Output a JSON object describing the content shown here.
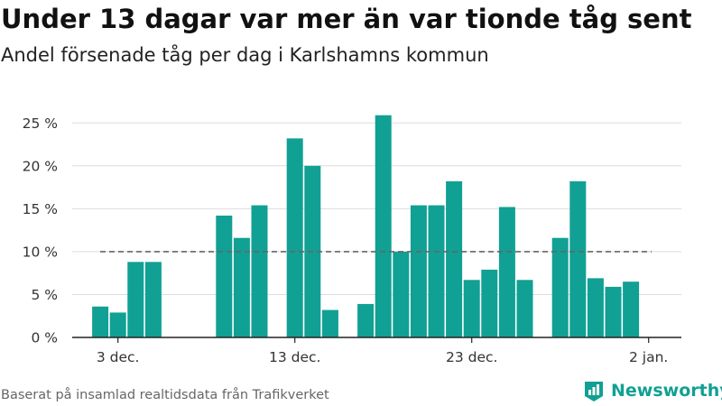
{
  "header": {
    "title": "Under 13 dagar var mer än var tionde tåg sent",
    "subtitle": "Andel försenade tåg per dag i Karlshamns kommun"
  },
  "footer": {
    "source": "Baserat på insamlad realtidsdata från Trafikverket",
    "brand": "Newsworthy"
  },
  "colors": {
    "bar": "#11a094",
    "reference": "#666666",
    "grid": "#dddddd",
    "brand": "#11a094"
  },
  "icons": {
    "brand_logo": "newsworthy-bar-chart-logo-icon"
  },
  "chart_data": {
    "type": "bar",
    "title": "Under 13 dagar var mer än var tionde tåg sent",
    "subtitle": "Andel försenade tåg per dag i Karlshamns kommun",
    "xlabel": "",
    "ylabel": "",
    "x_unit": "day index (0 = 1 dec.)",
    "x": [
      1,
      2,
      3,
      4,
      5,
      6,
      7,
      8,
      9,
      10,
      11,
      12,
      13,
      14,
      15,
      16,
      17,
      18,
      19,
      20,
      21,
      22,
      23,
      24,
      25,
      26,
      27,
      28,
      29,
      30,
      31
    ],
    "values": [
      3.6,
      2.9,
      8.8,
      8.8,
      null,
      null,
      null,
      14.2,
      11.6,
      15.4,
      null,
      23.2,
      20.0,
      3.2,
      null,
      3.9,
      25.9,
      10.0,
      15.4,
      15.4,
      18.2,
      6.7,
      7.9,
      15.2,
      6.7,
      null,
      11.6,
      18.2,
      6.9,
      5.9,
      6.5
    ],
    "x_ticks": [
      {
        "label": "3 dec.",
        "x": 2
      },
      {
        "label": "13 dec.",
        "x": 12
      },
      {
        "label": "23 dec.",
        "x": 22
      },
      {
        "label": "2 jan.",
        "x": 32
      }
    ],
    "y_ticks": [
      {
        "value": 0,
        "label": "0 %"
      },
      {
        "value": 5,
        "label": "5 %"
      },
      {
        "value": 10,
        "label": "10 %"
      },
      {
        "value": 15,
        "label": "15 %"
      },
      {
        "value": 20,
        "label": "20 %"
      },
      {
        "value": 25,
        "label": "25 %"
      }
    ],
    "ylim": [
      0,
      26.5
    ],
    "reference_line": {
      "value": 10,
      "style": "dashed"
    },
    "grid": true,
    "legend": "none"
  }
}
